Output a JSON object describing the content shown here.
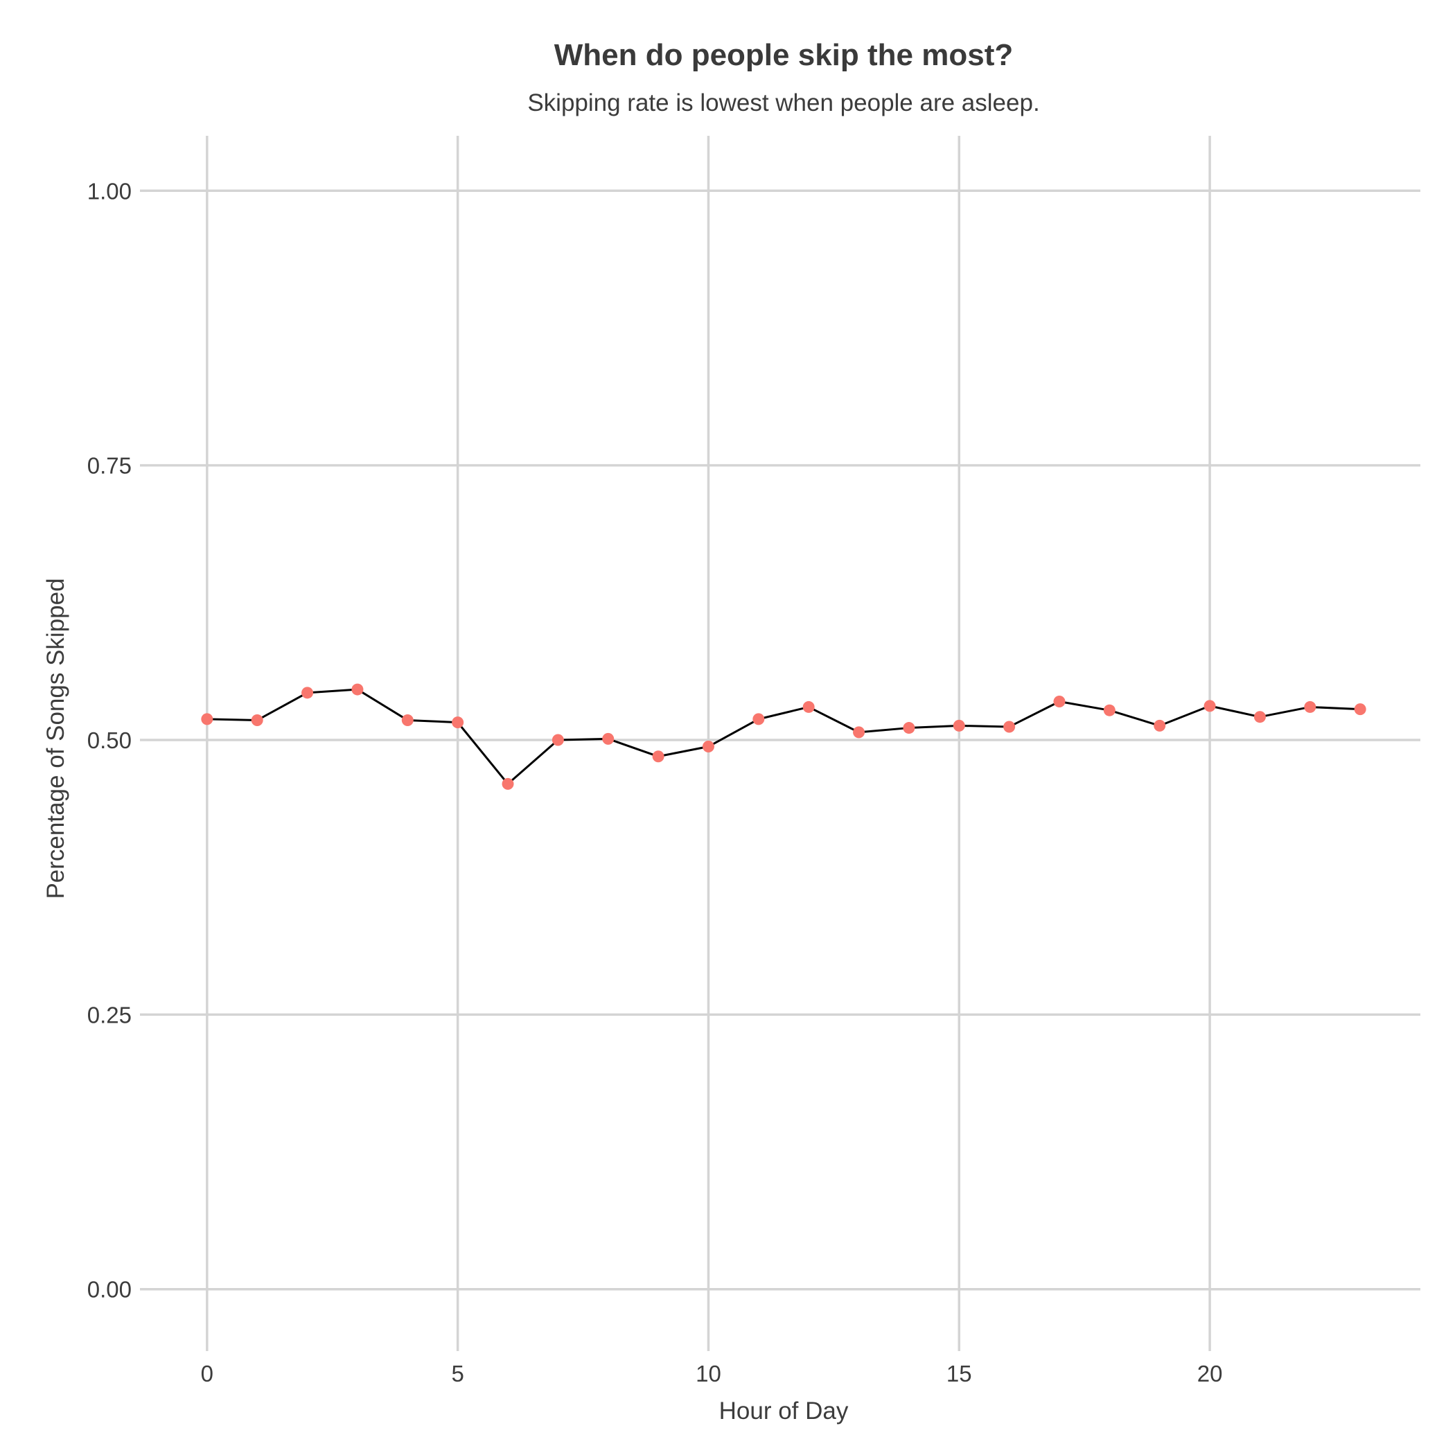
{
  "chart_data": {
    "type": "line",
    "title": "When do people skip the most?",
    "subtitle": "Skipping rate is lowest when people are asleep.",
    "xlabel": "Hour of Day",
    "ylabel": "Percentage of Songs Skipped",
    "xlim": [
      -1.2,
      24.2
    ],
    "ylim": [
      -0.05,
      1.05
    ],
    "x_ticks": [
      0,
      5,
      10,
      15,
      20
    ],
    "x_tick_labels": [
      "0",
      "5",
      "10",
      "15",
      "20"
    ],
    "y_ticks": [
      0,
      0.25,
      0.5,
      0.75,
      1.0
    ],
    "y_tick_labels": [
      "0.00",
      "0.25",
      "0.50",
      "0.75",
      "1.00"
    ],
    "grid": true,
    "x": [
      0,
      1,
      2,
      3,
      4,
      5,
      6,
      7,
      8,
      9,
      10,
      11,
      12,
      13,
      14,
      15,
      16,
      17,
      18,
      19,
      20,
      21,
      22,
      23
    ],
    "y": [
      0.519,
      0.518,
      0.543,
      0.546,
      0.518,
      0.516,
      0.46,
      0.5,
      0.501,
      0.485,
      0.494,
      0.519,
      0.53,
      0.507,
      0.511,
      0.513,
      0.512,
      0.535,
      0.527,
      0.513,
      0.531,
      0.521,
      0.53,
      0.528
    ],
    "line_color": "#000000",
    "point_color": "#F8766D",
    "grid_color": "#d4d4d4"
  }
}
